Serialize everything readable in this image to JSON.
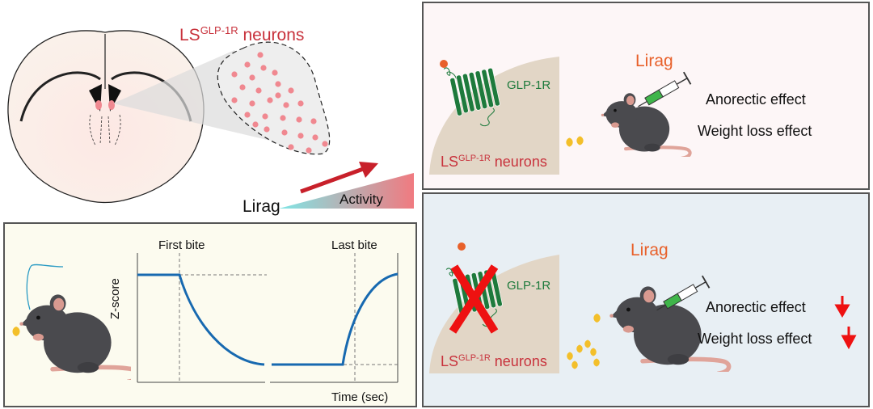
{
  "colors": {
    "ls_red": "#c8323c",
    "glp_green": "#1e7a3c",
    "lirag_orange": "#e8602a",
    "trace_blue": "#1769b0",
    "arrow_red": "#c8202a",
    "down_arrow": "#ee1111",
    "top_panel_bg": "#fdf6f7",
    "bottom_panel_bg": "#e8eff4",
    "trace_panel_bg": "#fcfbef",
    "tissue_tan": "#e2d6c6"
  },
  "overview": {
    "title_main": "LS",
    "title_sup": "GLP-1R",
    "title_tail": " neurons",
    "drug": "Lirag",
    "activity": "Activity"
  },
  "trace_panel": {
    "first_bite": "First bite",
    "last_bite": "Last bite",
    "ylabel": "Z-score",
    "xlabel": "Time (sec)"
  },
  "intact_panel": {
    "receptor": "GLP-1R",
    "neurons_main": "LS",
    "neurons_sup": "GLP-1R",
    "neurons_tail": " neurons",
    "drug": "Lirag",
    "effect_1": "Anorectic effect",
    "effect_2": "Weight loss effect"
  },
  "knockout_panel": {
    "receptor": "GLP-1R",
    "neurons_main": "LS",
    "neurons_sup": "GLP-1R",
    "neurons_tail": " neurons",
    "drug": "Lirag",
    "effect_1": "Anorectic effect",
    "effect_1_direction": "decreased",
    "effect_2": "Weight loss effect",
    "effect_2_direction": "decreased"
  }
}
